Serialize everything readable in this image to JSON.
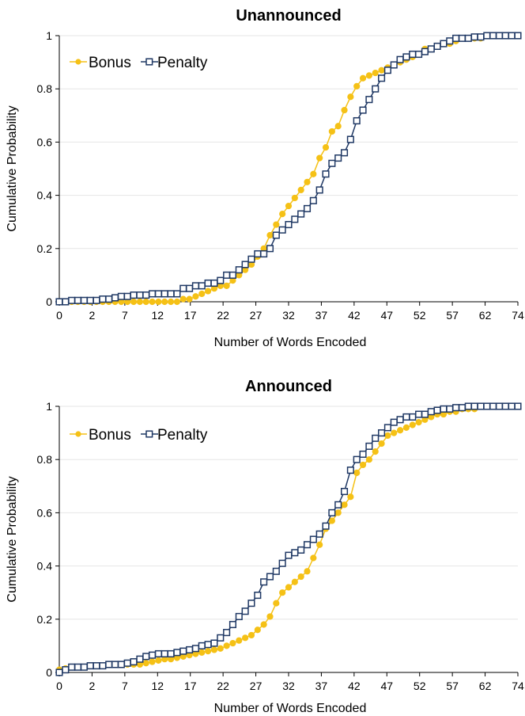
{
  "colors": {
    "bonus": "#F5C116",
    "penalty": "#1F3864",
    "grid": "#E6E6E6",
    "axis": "#000000"
  },
  "chart_data": [
    {
      "type": "line",
      "title": "Unannounced",
      "xlabel": "Number of Words Encoded",
      "ylabel": "Cumulative Probability",
      "x_tick_labels": [
        "0",
        "2",
        "7",
        "12",
        "17",
        "22",
        "27",
        "32",
        "37",
        "42",
        "47",
        "52",
        "57",
        "62",
        "74"
      ],
      "y_ticks": [
        "0",
        "0.2",
        "0.4",
        "0.6",
        "0.8",
        "1"
      ],
      "ylim": [
        0,
        1
      ],
      "legend": "top-left",
      "series": [
        {
          "name": "Bonus",
          "marker": "circle",
          "color": "#F5C116",
          "values": [
            0,
            0,
            0,
            0,
            0,
            0,
            0,
            0,
            0,
            0,
            0,
            0,
            0,
            0,
            0,
            0,
            0,
            0,
            0,
            0,
            0.01,
            0.01,
            0.02,
            0.03,
            0.04,
            0.05,
            0.06,
            0.06,
            0.08,
            0.1,
            0.12,
            0.14,
            0.17,
            0.2,
            0.25,
            0.29,
            0.33,
            0.36,
            0.39,
            0.42,
            0.45,
            0.48,
            0.54,
            0.58,
            0.64,
            0.66,
            0.72,
            0.77,
            0.81,
            0.84,
            0.85,
            0.86,
            0.87,
            0.88,
            0.89,
            0.9,
            0.91,
            0.92,
            0.93,
            0.95,
            0.95,
            0.96,
            0.97,
            0.97,
            0.98,
            0.99,
            0.99,
            0.99,
            0.99,
            1,
            1,
            1,
            1,
            1,
            1
          ]
        },
        {
          "name": "Penalty",
          "marker": "square",
          "color": "#1F3864",
          "values": [
            0,
            0,
            0.005,
            0.005,
            0.005,
            0.005,
            0.005,
            0.01,
            0.01,
            0.015,
            0.02,
            0.02,
            0.025,
            0.025,
            0.025,
            0.03,
            0.03,
            0.03,
            0.03,
            0.03,
            0.05,
            0.05,
            0.06,
            0.06,
            0.07,
            0.07,
            0.08,
            0.1,
            0.1,
            0.12,
            0.14,
            0.16,
            0.18,
            0.18,
            0.2,
            0.25,
            0.27,
            0.29,
            0.31,
            0.33,
            0.35,
            0.38,
            0.42,
            0.48,
            0.52,
            0.54,
            0.56,
            0.61,
            0.68,
            0.72,
            0.76,
            0.8,
            0.84,
            0.87,
            0.89,
            0.91,
            0.92,
            0.93,
            0.93,
            0.94,
            0.95,
            0.96,
            0.97,
            0.98,
            0.99,
            0.99,
            0.99,
            0.995,
            0.995,
            1,
            1,
            1,
            1,
            1,
            1
          ]
        }
      ]
    },
    {
      "type": "line",
      "title": "Announced",
      "xlabel": "Number of Words Encoded",
      "ylabel": "Cumulative Probability",
      "x_tick_labels": [
        "0",
        "2",
        "7",
        "12",
        "17",
        "22",
        "27",
        "32",
        "37",
        "42",
        "47",
        "52",
        "57",
        "62",
        "74"
      ],
      "y_ticks": [
        "0",
        "0.2",
        "0.4",
        "0.6",
        "0.8",
        "1"
      ],
      "ylim": [
        0,
        1
      ],
      "legend": "top-left",
      "series": [
        {
          "name": "Bonus",
          "marker": "circle",
          "color": "#F5C116",
          "values": [
            0.01,
            0.015,
            0.02,
            0.02,
            0.02,
            0.025,
            0.025,
            0.025,
            0.03,
            0.03,
            0.03,
            0.03,
            0.03,
            0.03,
            0.035,
            0.04,
            0.045,
            0.05,
            0.05,
            0.055,
            0.06,
            0.065,
            0.07,
            0.075,
            0.08,
            0.085,
            0.09,
            0.1,
            0.11,
            0.12,
            0.13,
            0.14,
            0.16,
            0.18,
            0.21,
            0.26,
            0.3,
            0.32,
            0.34,
            0.36,
            0.38,
            0.43,
            0.48,
            0.54,
            0.57,
            0.6,
            0.63,
            0.66,
            0.75,
            0.78,
            0.8,
            0.83,
            0.86,
            0.89,
            0.9,
            0.91,
            0.92,
            0.93,
            0.94,
            0.95,
            0.96,
            0.97,
            0.97,
            0.98,
            0.98,
            0.99,
            0.99,
            0.99,
            1,
            1,
            1,
            1,
            1,
            1,
            1
          ]
        },
        {
          "name": "Penalty",
          "marker": "square",
          "color": "#1F3864",
          "values": [
            0,
            0.01,
            0.02,
            0.02,
            0.02,
            0.025,
            0.025,
            0.025,
            0.03,
            0.03,
            0.03,
            0.035,
            0.04,
            0.05,
            0.06,
            0.065,
            0.07,
            0.07,
            0.07,
            0.075,
            0.08,
            0.085,
            0.09,
            0.1,
            0.105,
            0.11,
            0.13,
            0.15,
            0.18,
            0.21,
            0.23,
            0.26,
            0.29,
            0.34,
            0.36,
            0.38,
            0.41,
            0.44,
            0.45,
            0.46,
            0.48,
            0.5,
            0.52,
            0.55,
            0.6,
            0.63,
            0.68,
            0.76,
            0.8,
            0.82,
            0.85,
            0.88,
            0.9,
            0.92,
            0.94,
            0.95,
            0.96,
            0.96,
            0.97,
            0.97,
            0.98,
            0.985,
            0.99,
            0.99,
            0.995,
            0.995,
            1,
            1,
            1,
            1,
            1,
            1,
            1,
            1,
            1
          ]
        }
      ]
    }
  ]
}
